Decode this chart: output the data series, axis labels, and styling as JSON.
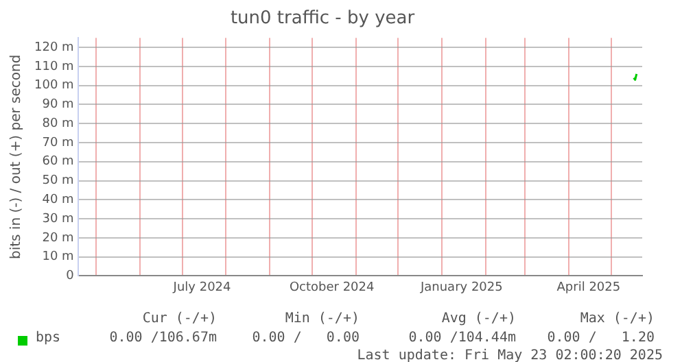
{
  "chart_data": {
    "type": "line",
    "title": "tun0 traffic - by year",
    "ylabel": "bits in (-) / out (+) per second",
    "x": [
      "2025-05-17",
      "2025-05-18",
      "2025-05-19"
    ],
    "series": [
      {
        "name": "bps",
        "color": "#00cc00",
        "values": [
          104,
          103,
          106
        ]
      }
    ],
    "xlim": [
      "2024-04-18",
      "2025-05-23"
    ],
    "xticks": [
      {
        "value": "2024-05-01",
        "label": null
      },
      {
        "value": "2024-06-01",
        "label": null
      },
      {
        "value": "2024-07-01",
        "label": null
      },
      {
        "value": "2024-07-15",
        "label": "July 2024"
      },
      {
        "value": "2024-08-01",
        "label": null
      },
      {
        "value": "2024-09-01",
        "label": null
      },
      {
        "value": "2024-10-01",
        "label": null
      },
      {
        "value": "2024-10-15",
        "label": "October 2024"
      },
      {
        "value": "2024-11-01",
        "label": null
      },
      {
        "value": "2024-12-01",
        "label": null
      },
      {
        "value": "2025-01-01",
        "label": null
      },
      {
        "value": "2025-01-15",
        "label": "January 2025"
      },
      {
        "value": "2025-02-01",
        "label": null
      },
      {
        "value": "2025-03-01",
        "label": null
      },
      {
        "value": "2025-04-01",
        "label": null
      },
      {
        "value": "2025-04-15",
        "label": "April 2025"
      },
      {
        "value": "2025-05-01",
        "label": null
      }
    ],
    "ylim": [
      0,
      125
    ],
    "yticks": [
      {
        "value": 0,
        "label": "0"
      },
      {
        "value": 10,
        "label": "10 m"
      },
      {
        "value": 20,
        "label": "20 m"
      },
      {
        "value": 30,
        "label": "30 m"
      },
      {
        "value": 40,
        "label": "40 m"
      },
      {
        "value": 50,
        "label": "50 m"
      },
      {
        "value": 60,
        "label": "60 m"
      },
      {
        "value": 70,
        "label": "70 m"
      },
      {
        "value": 80,
        "label": "80 m"
      },
      {
        "value": 90,
        "label": "90 m"
      },
      {
        "value": 100,
        "label": "100 m"
      },
      {
        "value": 110,
        "label": "110 m"
      },
      {
        "value": 120,
        "label": "120 m"
      }
    ],
    "grid": true,
    "legend": "bottom left",
    "marker": "none",
    "line_style": "solid",
    "annotations": [
      "Cur (-/+)",
      "Min (-/+)",
      "Avg (-/+)",
      "Max (-/+)",
      "0.00 /106.67m",
      "0.00 /   0.00",
      "0.00 /104.44m",
      "0.00 /   1.20",
      "Last update: Fri May 23 02:00:20 2025"
    ]
  }
}
